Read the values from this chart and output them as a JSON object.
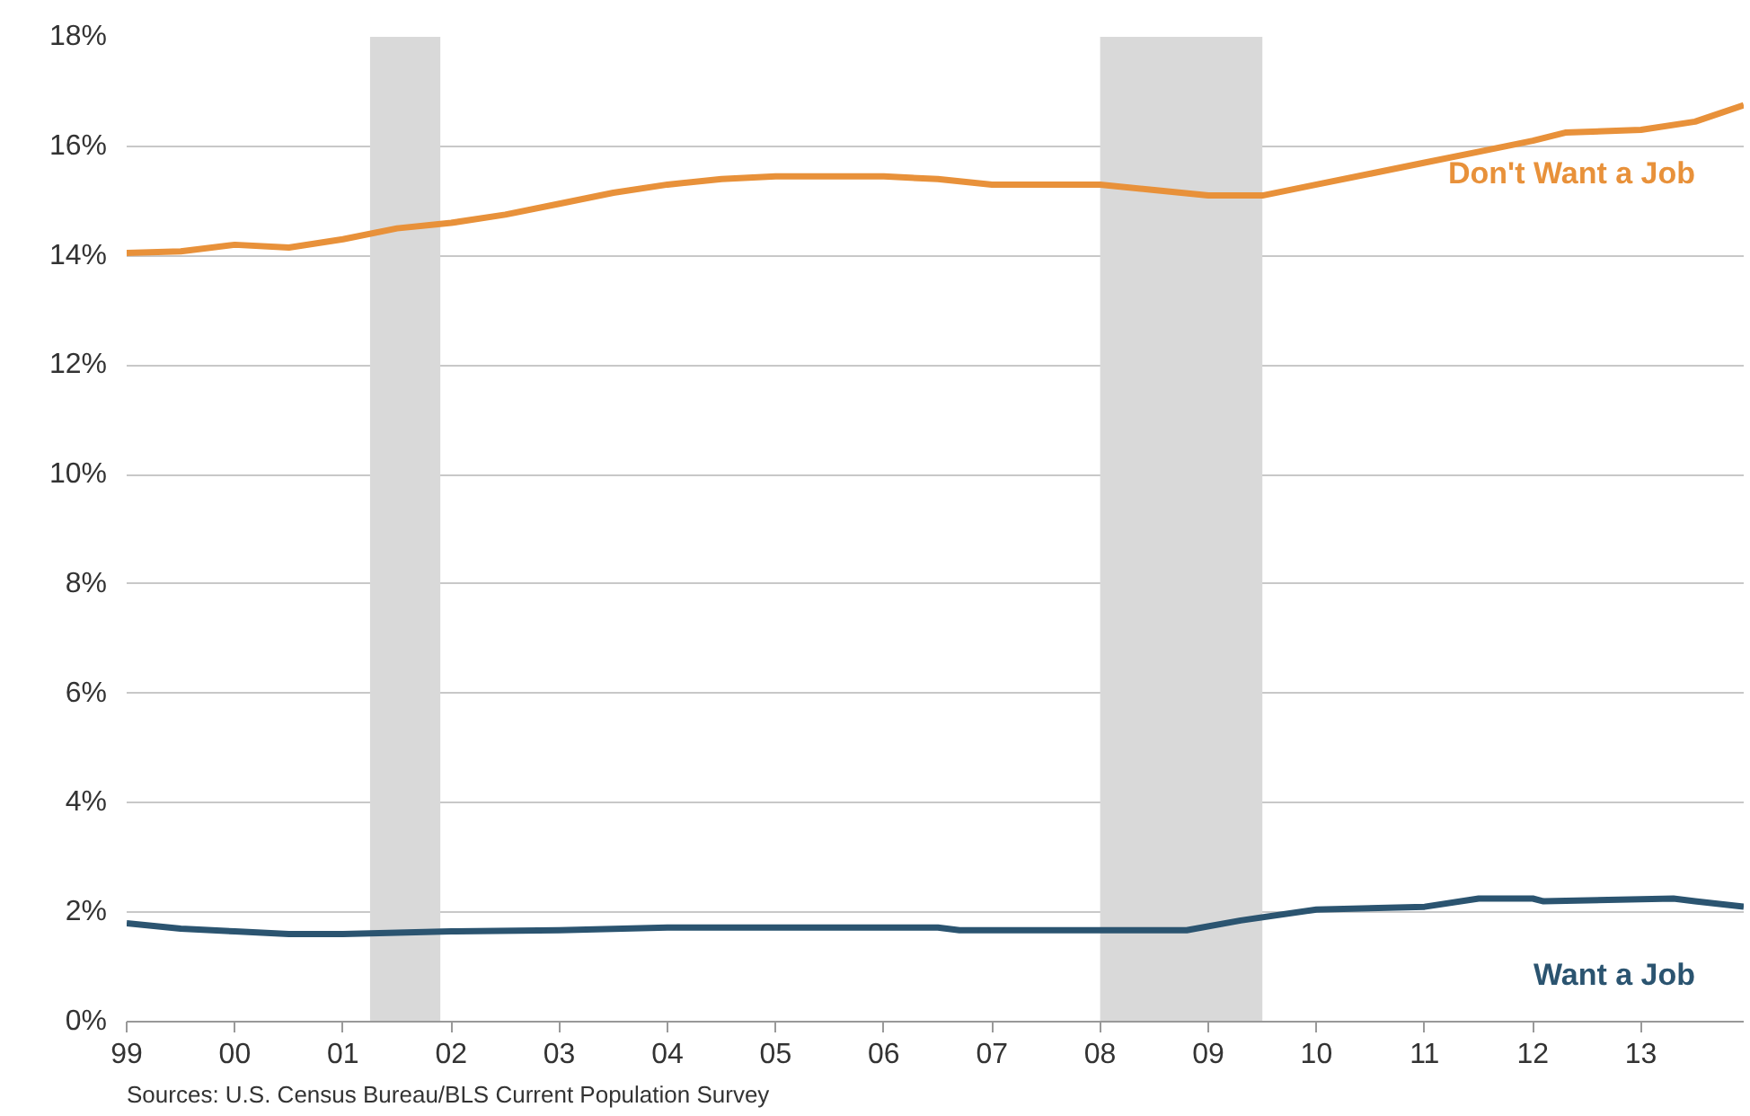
{
  "chart_data": {
    "type": "line",
    "annotations": [
      "Sources: U.S. Census Bureau/BLS Current Population Survey"
    ],
    "series": [
      {
        "name": "Don't Want a Job",
        "color": "#e8913a",
        "x": [
          1999,
          1999.5,
          2000,
          2000.5,
          2001,
          2001.5,
          2002,
          2002.5,
          2003,
          2003.5,
          2004,
          2004.5,
          2005,
          2006,
          2006.5,
          2007,
          2008,
          2008.5,
          2009,
          2009.5,
          2010,
          2010.5,
          2011,
          2011.5,
          2012,
          2012.3,
          2013,
          2013.5,
          2013.95
        ],
        "values": [
          14.05,
          14.08,
          14.2,
          14.15,
          14.3,
          14.5,
          14.6,
          14.75,
          14.95,
          15.15,
          15.3,
          15.4,
          15.45,
          15.45,
          15.4,
          15.3,
          15.3,
          15.2,
          15.1,
          15.1,
          15.3,
          15.5,
          15.7,
          15.9,
          16.1,
          16.25,
          16.3,
          16.45,
          16.75
        ]
      },
      {
        "name": "Want a Job",
        "color": "#2b5470",
        "x": [
          1999,
          1999.5,
          2000,
          2000.5,
          2001,
          2002,
          2003,
          2004,
          2006.5,
          2006.7,
          2008.8,
          2009.3,
          2010,
          2011,
          2011.5,
          2012,
          2012.1,
          2013.3,
          2013.5,
          2013.95
        ],
        "values": [
          1.8,
          1.7,
          1.65,
          1.6,
          1.6,
          1.65,
          1.67,
          1.72,
          1.72,
          1.67,
          1.67,
          1.85,
          2.05,
          2.1,
          2.25,
          2.25,
          2.2,
          2.25,
          2.2,
          2.1
        ]
      }
    ],
    "bands": [
      {
        "axis": "x",
        "from": 2001.25,
        "to": 2001.9,
        "color": "#d9d9d9"
      },
      {
        "axis": "x",
        "from": 2008.0,
        "to": 2009.5,
        "color": "#d9d9d9"
      }
    ],
    "xlim": [
      1999,
      2013.95
    ],
    "xticks": [
      {
        "value": 1999,
        "label": "99"
      },
      {
        "value": 2000,
        "label": "00"
      },
      {
        "value": 2001,
        "label": "01"
      },
      {
        "value": 2002,
        "label": "02"
      },
      {
        "value": 2003,
        "label": "03"
      },
      {
        "value": 2004,
        "label": "04"
      },
      {
        "value": 2005,
        "label": "05"
      },
      {
        "value": 2006,
        "label": "06"
      },
      {
        "value": 2007,
        "label": "07"
      },
      {
        "value": 2008,
        "label": "08"
      },
      {
        "value": 2009,
        "label": "09"
      },
      {
        "value": 2010,
        "label": "10"
      },
      {
        "value": 2011,
        "label": "11"
      },
      {
        "value": 2012,
        "label": "12"
      },
      {
        "value": 2013,
        "label": "13"
      }
    ],
    "ylim": [
      0,
      18
    ],
    "yticks": [
      {
        "value": 0,
        "label": "0%"
      },
      {
        "value": 2,
        "label": "2%"
      },
      {
        "value": 4,
        "label": "4%"
      },
      {
        "value": 6,
        "label": "6%"
      },
      {
        "value": 8,
        "label": "8%"
      },
      {
        "value": 10,
        "label": "10%"
      },
      {
        "value": 12,
        "label": "12%"
      },
      {
        "value": 14,
        "label": "14%"
      },
      {
        "value": 16,
        "label": "16%"
      },
      {
        "value": 18,
        "label": "18%"
      }
    ],
    "grid": "y",
    "legend": false,
    "marker": "none",
    "line_style": "solid"
  }
}
